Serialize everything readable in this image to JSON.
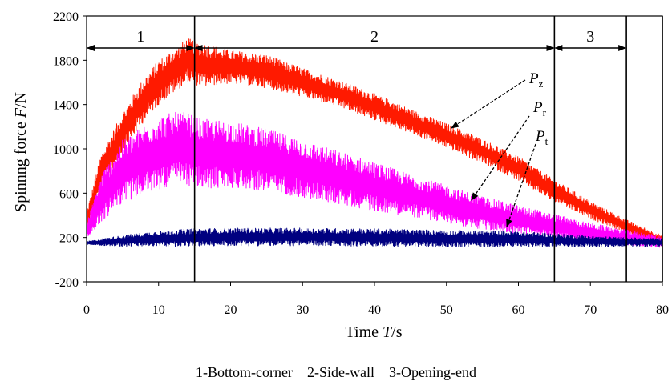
{
  "chart_data": {
    "type": "line",
    "xlabel": "Time T/s",
    "ylabel": "Spinnng force F/N",
    "xlim": [
      0,
      80
    ],
    "ylim": [
      -200,
      2200
    ],
    "x_ticks": [
      0,
      10,
      20,
      30,
      40,
      50,
      60,
      70,
      80
    ],
    "y_ticks": [
      -200,
      200,
      600,
      1000,
      1400,
      1800,
      2200
    ],
    "grid": false,
    "vertical_lines_x": [
      15,
      65,
      75,
      80
    ],
    "regions": [
      {
        "label": "1",
        "x_start": 0,
        "x_end": 15
      },
      {
        "label": "2",
        "x_start": 15,
        "x_end": 65
      },
      {
        "label": "3",
        "x_start": 65,
        "x_end": 75
      }
    ],
    "series": [
      {
        "name": "Pz",
        "color": "#ff1a00",
        "x": [
          0,
          2,
          5,
          8,
          10,
          12,
          14,
          15,
          16,
          20,
          25,
          30,
          35,
          40,
          45,
          50,
          55,
          60,
          65,
          70,
          75,
          80
        ],
        "mean": [
          350,
          800,
          1150,
          1450,
          1600,
          1700,
          1800,
          1780,
          1760,
          1740,
          1700,
          1600,
          1500,
          1380,
          1250,
          1120,
          980,
          820,
          620,
          450,
          300,
          170
        ],
        "amplitude": [
          80,
          150,
          180,
          200,
          200,
          200,
          200,
          200,
          200,
          150,
          150,
          130,
          120,
          120,
          110,
          110,
          110,
          110,
          100,
          80,
          60,
          50
        ]
      },
      {
        "name": "Pr",
        "color": "#ff00ff",
        "x": [
          0,
          2,
          5,
          8,
          10,
          12,
          14,
          15,
          16,
          20,
          25,
          30,
          35,
          40,
          45,
          50,
          55,
          60,
          65,
          70,
          75,
          80
        ],
        "mean": [
          250,
          550,
          800,
          900,
          960,
          1000,
          1000,
          970,
          950,
          950,
          900,
          820,
          740,
          660,
          580,
          500,
          420,
          360,
          300,
          240,
          200,
          160
        ],
        "amplitude": [
          80,
          220,
          280,
          320,
          330,
          330,
          330,
          320,
          320,
          300,
          280,
          260,
          240,
          220,
          190,
          170,
          150,
          130,
          110,
          90,
          70,
          50
        ]
      },
      {
        "name": "Pt",
        "color": "#000080",
        "x": [
          0,
          5,
          10,
          15,
          20,
          30,
          40,
          50,
          60,
          65,
          70,
          75,
          80
        ],
        "mean": [
          150,
          170,
          190,
          200,
          205,
          205,
          200,
          190,
          185,
          175,
          165,
          160,
          155
        ],
        "amplitude": [
          15,
          50,
          70,
          80,
          80,
          80,
          80,
          75,
          70,
          60,
          50,
          40,
          35
        ]
      }
    ],
    "annotations": [
      "Pz",
      "Pr",
      "Pt"
    ],
    "caption": "1-Bottom-corner    2-Side-wall    3-Opening-end"
  },
  "text": {
    "ylabel_main": "Spinnng force ",
    "ylabel_var": "F",
    "ylabel_unit": "/N",
    "xlabel_main": "Time ",
    "xlabel_var": "T",
    "xlabel_unit": "/s",
    "label_pz": "P",
    "label_pz_sub": "z",
    "label_pr": "P",
    "label_pr_sub": "r",
    "label_pt": "P",
    "label_pt_sub": "t"
  }
}
